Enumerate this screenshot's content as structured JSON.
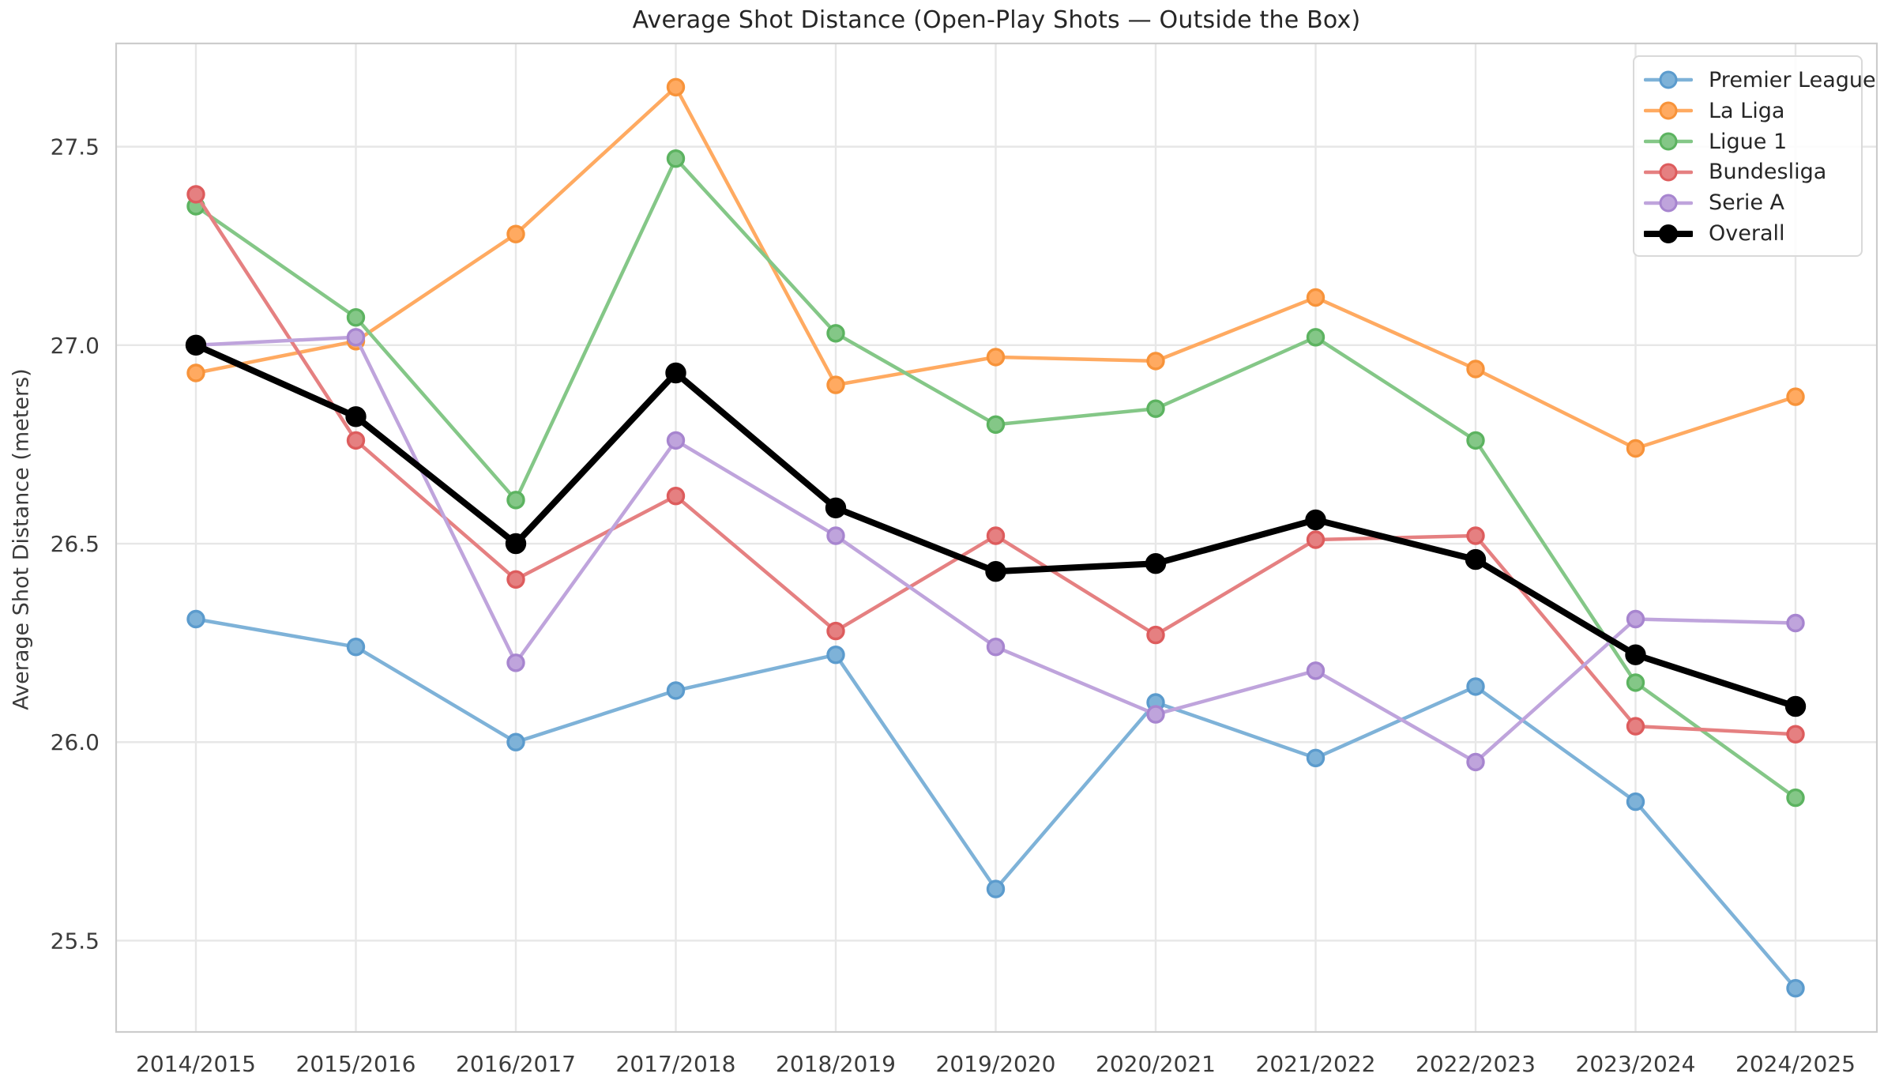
{
  "chart_data": {
    "type": "line",
    "title": "Average Shot Distance (Open-Play Shots — Outside the Box)",
    "xlabel": "",
    "ylabel": "Average Shot Distance (meters)",
    "categories": [
      "2014/2015",
      "2015/2016",
      "2016/2017",
      "2017/2018",
      "2018/2019",
      "2019/2020",
      "2020/2021",
      "2021/2022",
      "2022/2023",
      "2023/2024",
      "2024/2025"
    ],
    "yticks": [
      25.5,
      26.0,
      26.5,
      27.0,
      27.5
    ],
    "ylim": [
      25.27,
      27.76
    ],
    "grid": true,
    "legend_position": "upper right",
    "colors": {
      "background": "#ffffff",
      "grid": "#e7e7e7",
      "spine": "#cccccc",
      "tick_text": "#3b3b3b",
      "title_text": "#262626"
    },
    "series": [
      {
        "name": "Premier League",
        "color": "#7eb2d8",
        "marker_color": "#5b9bcd",
        "line_width": 4.5,
        "marker_radius": 10,
        "values": [
          26.31,
          26.24,
          26.0,
          26.13,
          26.22,
          25.63,
          26.1,
          25.96,
          26.14,
          25.85,
          25.38
        ]
      },
      {
        "name": "La Liga",
        "color": "#ffaa61",
        "marker_color": "#f7933a",
        "line_width": 4.5,
        "marker_radius": 10,
        "values": [
          26.93,
          27.01,
          27.28,
          27.65,
          26.9,
          26.97,
          26.96,
          27.12,
          26.94,
          26.74,
          26.87
        ]
      },
      {
        "name": "Ligue 1",
        "color": "#84c787",
        "marker_color": "#5cb360",
        "line_width": 4.5,
        "marker_radius": 10,
        "values": [
          27.35,
          27.07,
          26.61,
          27.47,
          27.03,
          26.8,
          26.84,
          27.02,
          26.76,
          26.15,
          25.86
        ]
      },
      {
        "name": "Bundesliga",
        "color": "#e58081",
        "marker_color": "#dd5c5d",
        "line_width": 4.5,
        "marker_radius": 10,
        "values": [
          27.38,
          26.76,
          26.41,
          26.62,
          26.28,
          26.52,
          26.27,
          26.51,
          26.52,
          26.04,
          26.02
        ]
      },
      {
        "name": "Serie A",
        "color": "#bfa4dc",
        "marker_color": "#a785cf",
        "line_width": 4.5,
        "marker_radius": 10,
        "values": [
          27.0,
          27.02,
          26.2,
          26.76,
          26.52,
          26.24,
          26.07,
          26.18,
          25.95,
          26.31,
          26.3
        ]
      },
      {
        "name": "Overall",
        "color": "#000000",
        "marker_color": "#000000",
        "line_width": 8,
        "marker_radius": 11.5,
        "values": [
          27.0,
          26.82,
          26.5,
          26.93,
          26.59,
          26.43,
          26.45,
          26.56,
          26.46,
          26.22,
          26.09
        ]
      }
    ]
  }
}
